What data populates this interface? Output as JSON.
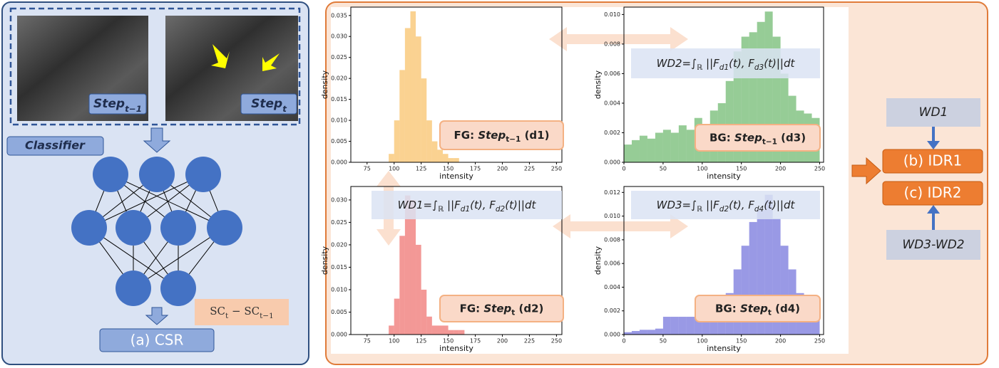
{
  "left_panel": {
    "frames": [
      {
        "label": [
          {
            "t": "Step"
          },
          {
            "t": "t−1",
            "sub": true
          }
        ]
      },
      {
        "label": [
          {
            "t": "Step"
          },
          {
            "t": "t",
            "sub": true
          }
        ]
      }
    ],
    "classifier": "Classifier",
    "score": [
      {
        "t": "SC"
      },
      {
        "t": "t",
        "sub": true
      },
      {
        "t": " − SC"
      },
      {
        "t": "t−1",
        "sub": true
      }
    ],
    "output": "(a) CSR"
  },
  "charts": [
    {
      "type": "histogram",
      "x_label": "intensity",
      "y_label": "density",
      "color": "#f5a623",
      "bins": [
        95,
        100,
        105,
        110,
        115,
        120,
        125,
        130,
        135,
        140,
        145,
        150,
        155,
        160
      ],
      "values": [
        0.002,
        0.01,
        0.022,
        0.032,
        0.036,
        0.03,
        0.02,
        0.01,
        0.005,
        0.003,
        0.002,
        0.001,
        0.001
      ],
      "xlim": [
        60,
        255
      ],
      "xticks": [
        75,
        100,
        125,
        150,
        175,
        200,
        225,
        250
      ],
      "ylim": [
        0,
        0.037
      ],
      "yticks": [
        {
          "value": 0,
          "label": "0.000"
        },
        0.005,
        {
          "value": 0.01,
          "label": "0.010"
        },
        0.015,
        {
          "value": 0.02,
          "label": "0.020"
        },
        0.025,
        {
          "value": 0.03,
          "label": "0.030"
        },
        0.035
      ],
      "caption": [
        {
          "t": "FG: "
        },
        {
          "t": "Step"
        },
        {
          "t": "t−1",
          "sub": true
        },
        {
          "t": " (d1)"
        }
      ]
    },
    {
      "type": "histogram",
      "x_label": "intensity",
      "y_label": "density",
      "color": "#2e9a2e",
      "bins": [
        0,
        10,
        20,
        30,
        40,
        50,
        60,
        70,
        80,
        90,
        100,
        110,
        120,
        130,
        140,
        150,
        160,
        170,
        180,
        190,
        200,
        210,
        220,
        230,
        240,
        250
      ],
      "values": [
        0.0012,
        0.0015,
        0.0018,
        0.0016,
        0.002,
        0.0022,
        0.002,
        0.0025,
        0.0022,
        0.003,
        0.0025,
        0.0035,
        0.004,
        0.0055,
        0.0075,
        0.0085,
        0.0088,
        0.0095,
        0.0102,
        0.0085,
        0.006,
        0.0045,
        0.0035,
        0.0033,
        0.003
      ],
      "xlim": [
        0,
        255
      ],
      "xticks": [
        0,
        50,
        100,
        150,
        200,
        250
      ],
      "ylim": [
        0,
        0.0105
      ],
      "yticks": [
        {
          "value": 0,
          "label": "0.000"
        },
        0.002,
        0.004,
        0.006,
        0.008,
        {
          "value": 0.01,
          "label": "0.010"
        }
      ],
      "caption": [
        {
          "t": "BG: "
        },
        {
          "t": "Step"
        },
        {
          "t": "t−1",
          "sub": true
        },
        {
          "t": " (d3)"
        }
      ]
    },
    {
      "type": "histogram",
      "x_label": "intensity",
      "y_label": "density",
      "color": "#e8322e",
      "bins": [
        95,
        100,
        105,
        110,
        115,
        120,
        125,
        130,
        135,
        140,
        145,
        150,
        155,
        160,
        165
      ],
      "values": [
        0.002,
        0.008,
        0.022,
        0.031,
        0.03,
        0.02,
        0.01,
        0.004,
        0.002,
        0.002,
        0.002,
        0.001,
        0.001,
        0.001
      ],
      "xlim": [
        60,
        255
      ],
      "xticks": [
        75,
        100,
        125,
        150,
        175,
        200,
        225,
        250
      ],
      "ylim": [
        0,
        0.033
      ],
      "yticks": [
        {
          "value": 0,
          "label": "0.000"
        },
        0.005,
        {
          "value": 0.01,
          "label": "0.010"
        },
        0.015,
        {
          "value": 0.02,
          "label": "0.020"
        },
        0.025,
        {
          "value": 0.03,
          "label": "0.030"
        }
      ],
      "caption": [
        {
          "t": "FG: "
        },
        {
          "t": "Step"
        },
        {
          "t": "t",
          "sub": true
        },
        {
          "t": " (d2)"
        }
      ]
    },
    {
      "type": "histogram",
      "x_label": "intensity",
      "y_label": "density",
      "color": "#3333cc",
      "bins": [
        0,
        10,
        20,
        30,
        40,
        50,
        60,
        70,
        80,
        90,
        100,
        110,
        120,
        130,
        140,
        150,
        160,
        170,
        180,
        190,
        200,
        210,
        220,
        230,
        240,
        250
      ],
      "values": [
        0.0002,
        0.0003,
        0.0004,
        0.0004,
        0.0005,
        0.0015,
        0.0015,
        0.0015,
        0.0015,
        0.0015,
        0.002,
        0.0022,
        0.0025,
        0.0035,
        0.0055,
        0.0075,
        0.0095,
        0.0105,
        0.0118,
        0.0098,
        0.0075,
        0.0055,
        0.0035,
        0.0025,
        0.002
      ],
      "xlim": [
        0,
        255
      ],
      "xticks": [
        0,
        50,
        100,
        150,
        200,
        250
      ],
      "ylim": [
        0,
        0.0125
      ],
      "yticks": [
        {
          "value": 0,
          "label": "0.000"
        },
        0.002,
        0.004,
        0.006,
        0.008,
        {
          "value": 0.01,
          "label": "0.010"
        },
        0.012
      ],
      "caption": [
        {
          "t": "BG: "
        },
        {
          "t": "Step"
        },
        {
          "t": "t",
          "sub": true
        },
        {
          "t": " (d4)"
        }
      ]
    }
  ],
  "formulas": [
    [
      {
        "t": "WD2=∫"
      },
      {
        "t": "ℝ",
        "sub": true
      },
      {
        "t": " ||F"
      },
      {
        "t": "d1",
        "sub": true
      },
      {
        "t": "(t), F"
      },
      {
        "t": "d3",
        "sub": true
      },
      {
        "t": "(t)||dt"
      }
    ],
    [
      {
        "t": "WD1=∫"
      },
      {
        "t": "ℝ",
        "sub": true
      },
      {
        "t": " ||F"
      },
      {
        "t": "d1",
        "sub": true
      },
      {
        "t": "(t), F"
      },
      {
        "t": "d2",
        "sub": true
      },
      {
        "t": "(t)||dt"
      }
    ],
    [
      {
        "t": "WD3=∫"
      },
      {
        "t": "ℝ",
        "sub": true
      },
      {
        "t": " ||F"
      },
      {
        "t": "d2",
        "sub": true
      },
      {
        "t": "(t), F"
      },
      {
        "t": "d4",
        "sub": true
      },
      {
        "t": "(t)||dt"
      }
    ]
  ],
  "right_panel": {
    "inputs": [
      "WD1",
      "WD3-WD2"
    ],
    "outputs": [
      "(b) IDR1",
      "(c) IDR2"
    ]
  }
}
